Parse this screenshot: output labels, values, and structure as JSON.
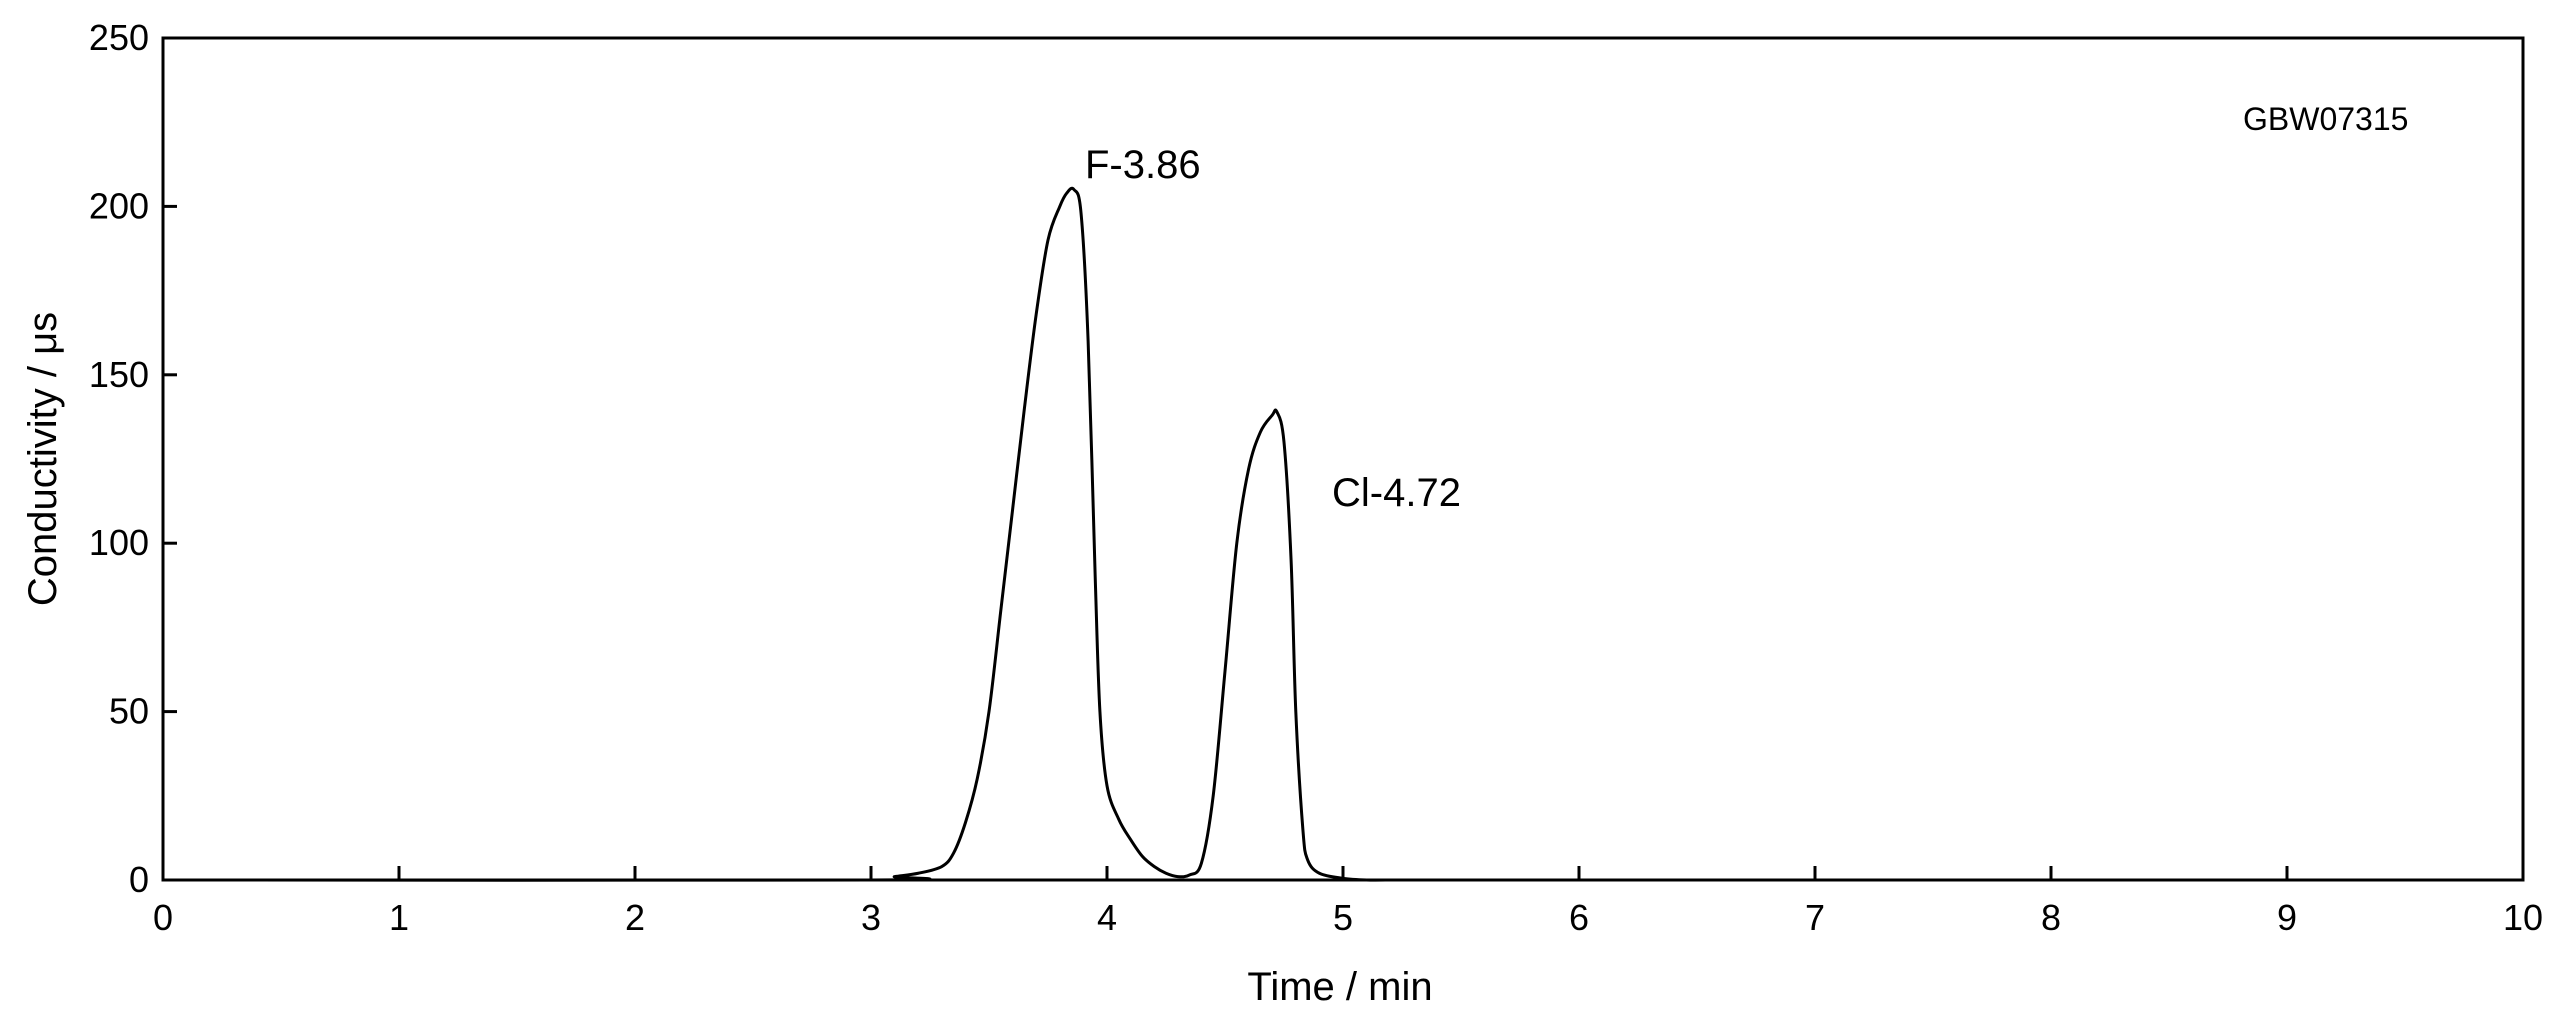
{
  "chart_data": {
    "type": "line",
    "title": "",
    "xlabel": "Time / min",
    "ylabel": "Conductivity / μs",
    "xlim": [
      0,
      10
    ],
    "ylim": [
      0,
      250
    ],
    "xticks": [
      0,
      1,
      2,
      3,
      4,
      5,
      6,
      7,
      8,
      9,
      10
    ],
    "yticks": [
      0,
      50,
      100,
      150,
      200,
      250
    ],
    "xtick_labels": [
      "0",
      "1",
      "2",
      "3",
      "4",
      "5",
      "6",
      "7",
      "8",
      "9",
      "10"
    ],
    "ytick_labels": [
      "0",
      "50",
      "100",
      "150",
      "200",
      "250"
    ],
    "grid": false,
    "legend": "none",
    "line_color": "#000000",
    "sample_label": "GBW07315",
    "annotations": [
      {
        "text": "F-3.86",
        "x": 3.86,
        "y": 205
      },
      {
        "text": "Cl-4.72",
        "x": 4.72,
        "y": 139
      }
    ],
    "series": [
      {
        "x": [
          0,
          3.0,
          3.1,
          3.2,
          3.3,
          3.35,
          3.4,
          3.45,
          3.5,
          3.55,
          3.6,
          3.65,
          3.7,
          3.75,
          3.8,
          3.83,
          3.86,
          3.89,
          3.92,
          3.95,
          3.97,
          4.0,
          4.05,
          4.1,
          4.15,
          4.2,
          4.25,
          4.3,
          4.35,
          4.4,
          4.45,
          4.5,
          4.55,
          4.6,
          4.65,
          4.7,
          4.72,
          4.75,
          4.78,
          4.8,
          4.83,
          4.85,
          4.9,
          5.0,
          5.1,
          5.2
        ],
        "y": [
          0,
          0,
          1,
          2,
          4,
          8,
          17,
          30,
          50,
          80,
          110,
          140,
          168,
          190,
          200,
          204,
          205,
          198,
          160,
          90,
          50,
          28,
          18,
          12,
          7,
          4,
          2,
          1,
          1.5,
          5,
          25,
          62,
          100,
          122,
          133,
          138,
          139,
          130,
          95,
          50,
          15,
          6,
          2,
          0.5,
          0,
          0
        ]
      }
    ]
  }
}
